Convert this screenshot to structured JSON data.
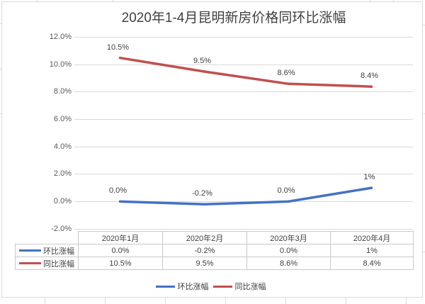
{
  "title": "2020年1-4月昆明新房价格同环比涨幅",
  "colors": {
    "momo_series": "#4472c4",
    "yoy_series": "#c0504d",
    "gridline": "#d9d9d9",
    "axis_text": "#595959",
    "body_text": "#404040"
  },
  "chart_data": {
    "type": "line",
    "title": "2020年1-4月昆明新房价格同环比涨幅",
    "categories": [
      "2020年1月",
      "2020年2月",
      "2020年3月",
      "2020年4月"
    ],
    "series": [
      {
        "name": "环比涨幅",
        "color": "#4472c4",
        "values": [
          0.0,
          -0.2,
          0.0,
          1.0
        ],
        "labels": [
          "0.0%",
          "-0.2%",
          "0.0%",
          "1%"
        ]
      },
      {
        "name": "同比涨幅",
        "color": "#c0504d",
        "values": [
          10.5,
          9.5,
          8.6,
          8.4
        ],
        "labels": [
          "10.5%",
          "9.5%",
          "8.6%",
          "8.4%"
        ]
      }
    ],
    "ylim": [
      -2,
      12
    ],
    "ytick_step": 2,
    "ytick_labels_top_to_bottom": [
      "12.0%",
      "10.0%",
      "8.0%",
      "6.0%",
      "4.0%",
      "2.0%",
      "0.0%",
      "-2.0%"
    ],
    "grid": "horizontal",
    "legend_position": "bottom",
    "data_table_shown": true,
    "xlabel": "",
    "ylabel": ""
  }
}
